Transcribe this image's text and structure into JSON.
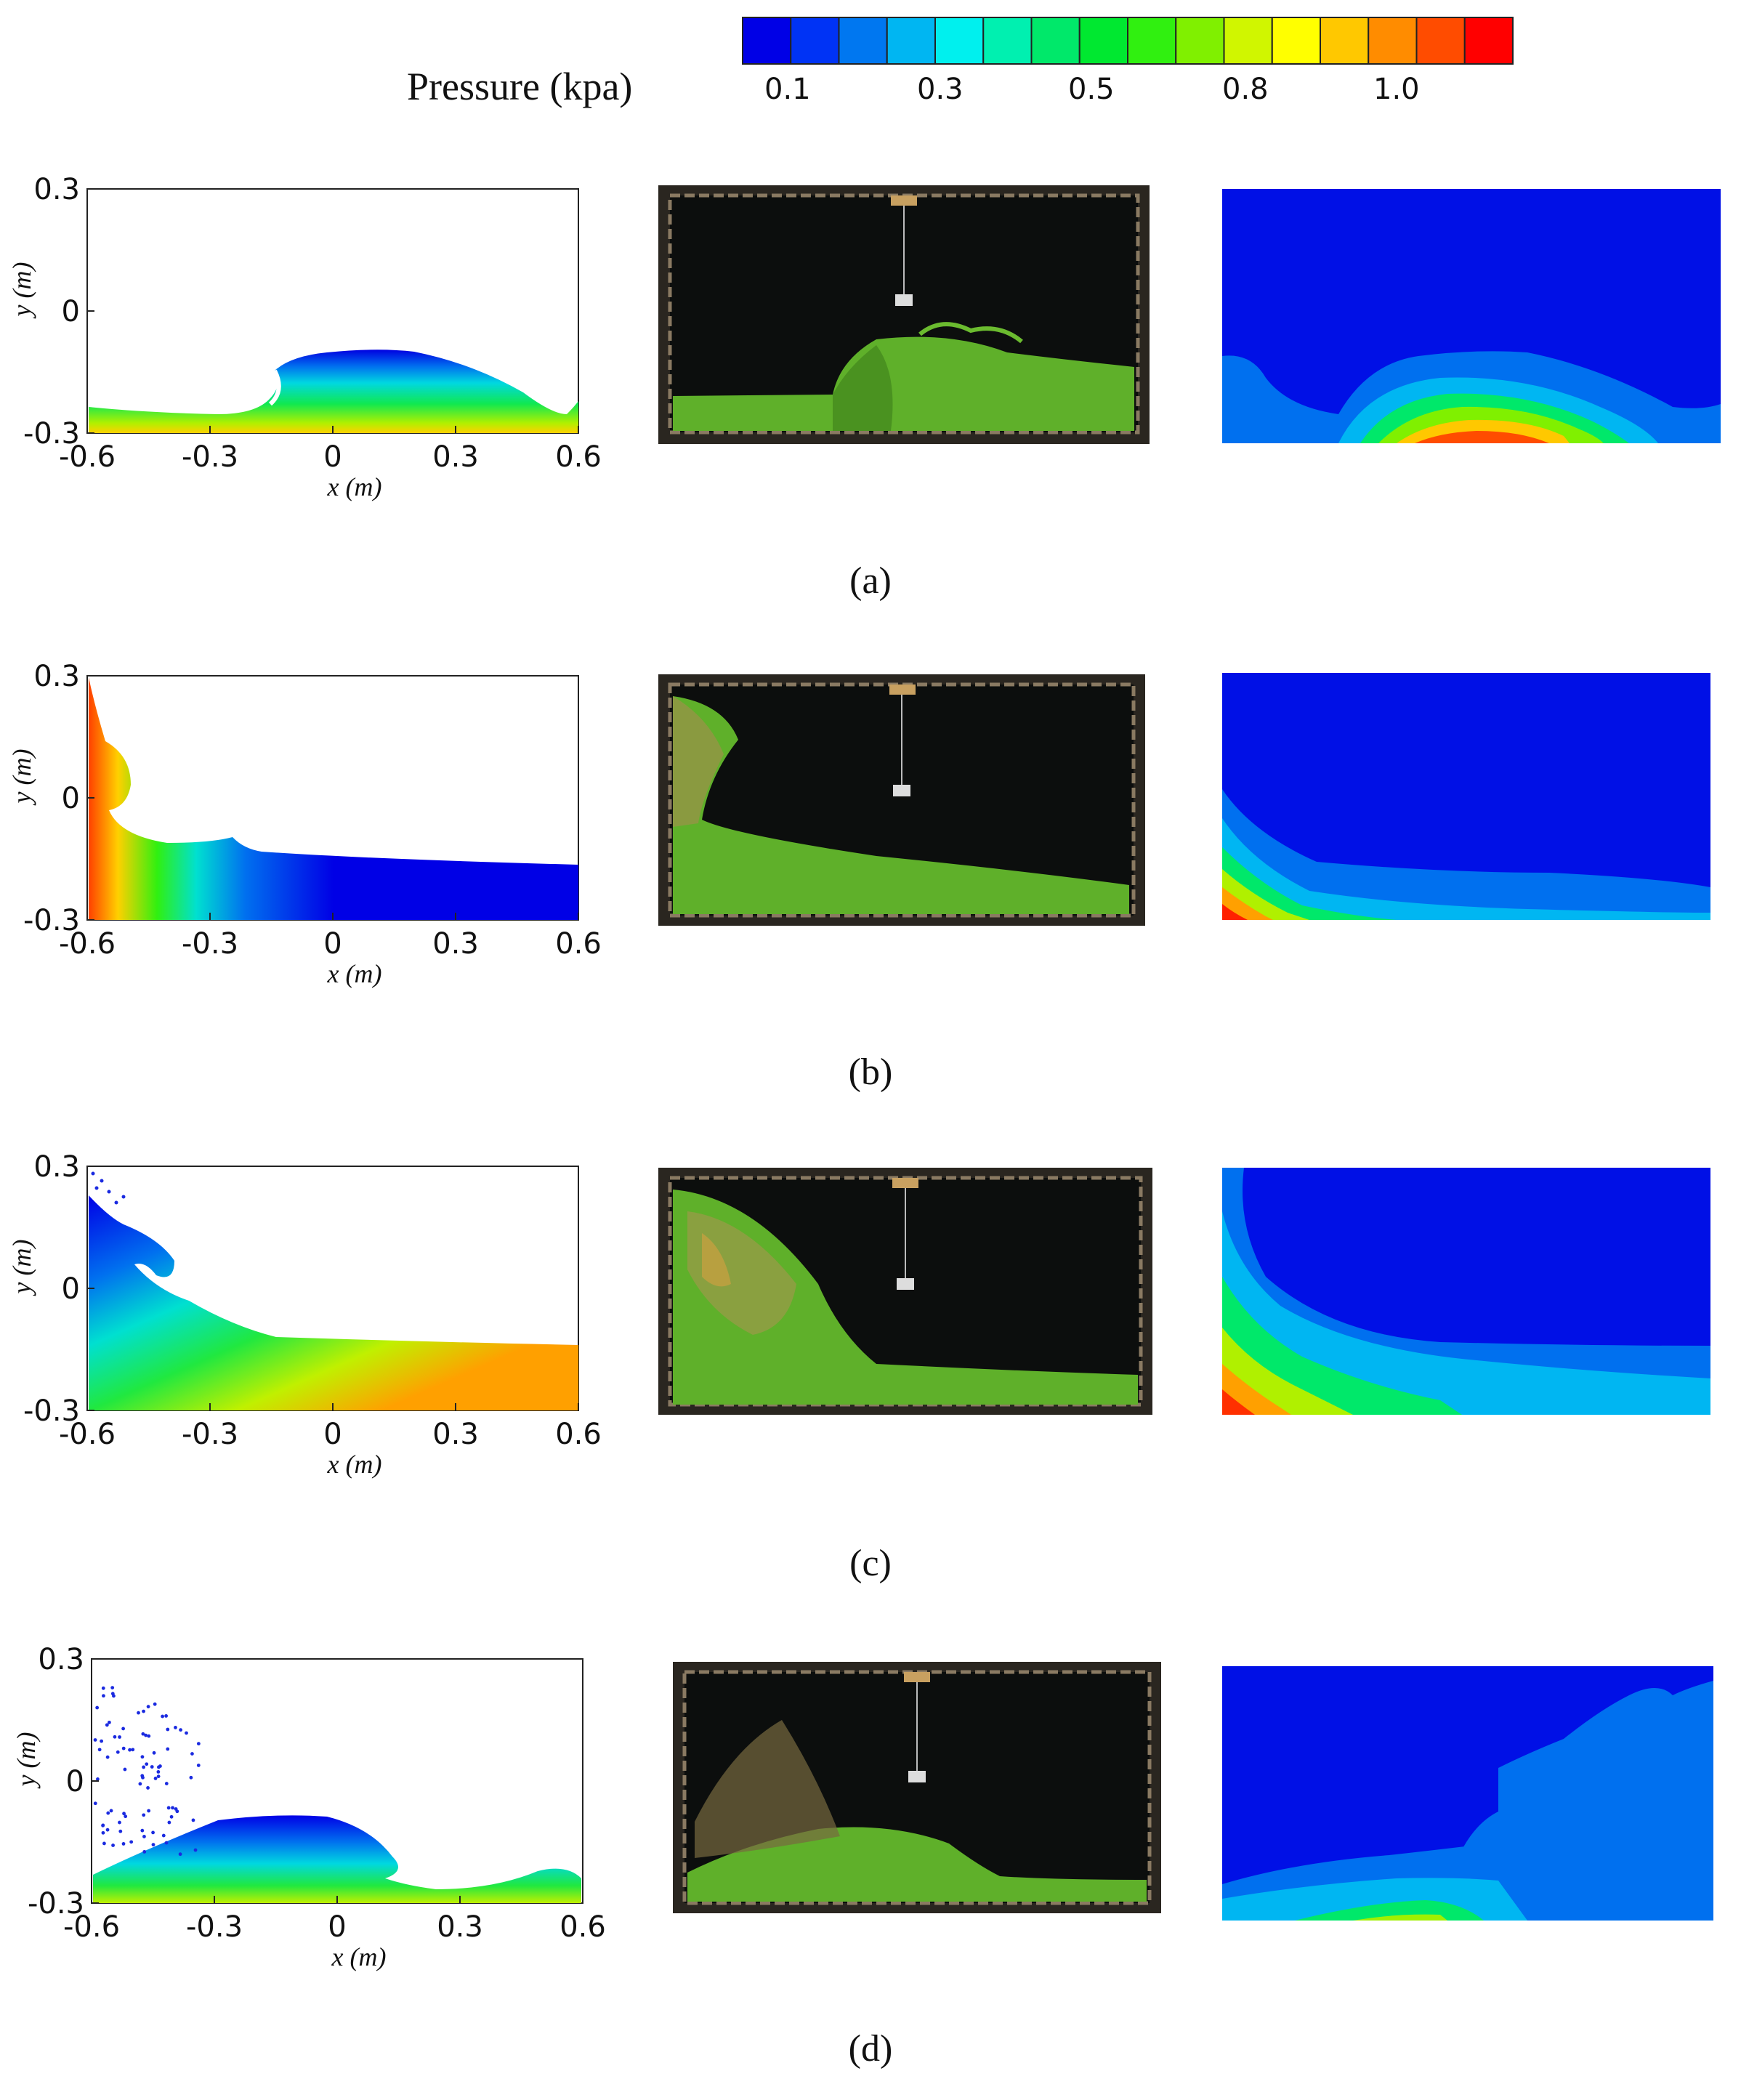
{
  "legend": {
    "title": "Pressure (kpa)",
    "ticks": [
      "0.1",
      "0.3",
      "0.5",
      "0.8",
      "1.0"
    ],
    "colors": [
      "#0000e6",
      "#0033f5",
      "#0077f0",
      "#00b6f2",
      "#00f0ee",
      "#00f0b0",
      "#00e86a",
      "#00e830",
      "#30f010",
      "#80f000",
      "#d0f600",
      "#ffff00",
      "#ffc800",
      "#ff8c00",
      "#ff4c00",
      "#ff0000"
    ]
  },
  "axes": {
    "x_ticks": [
      "-0.6",
      "-0.3",
      "0",
      "0.3",
      "0.6"
    ],
    "y_ticks": [
      "0.3",
      "0",
      "-0.3"
    ],
    "x_title": "x (m)",
    "y_title": "y (m)"
  },
  "captions": [
    "(a)",
    "(b)",
    "(c)",
    "(d)"
  ],
  "icons": {
    "photo": "tank-photo-image",
    "cfd": "pressure-contour-image"
  }
}
